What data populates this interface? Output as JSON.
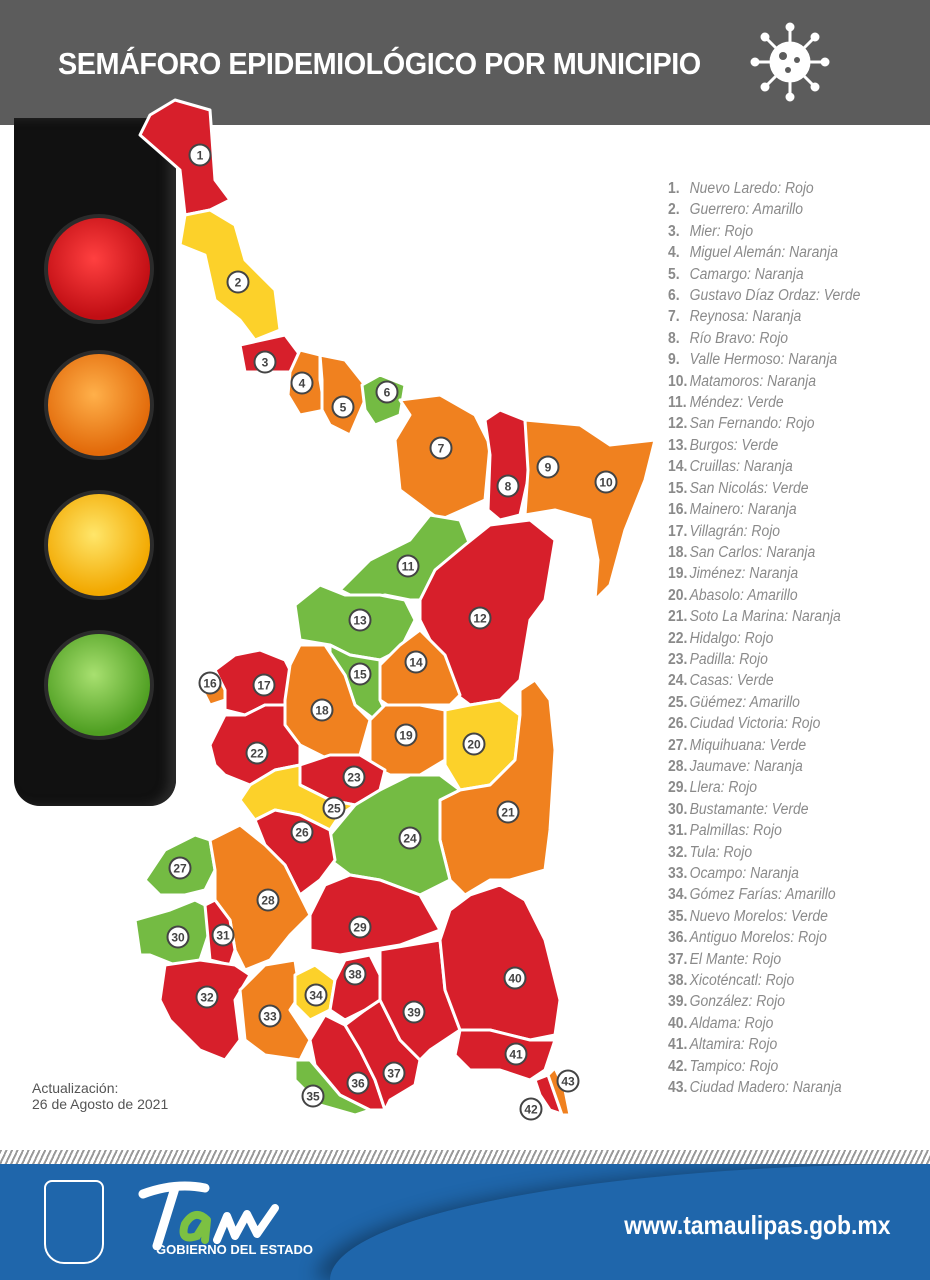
{
  "header": {
    "title": "SEMÁFORO EPIDEMIOLÓGICO POR MUNICIPIO",
    "icon": "virus-icon"
  },
  "status_colors": {
    "Rojo": "#d71f2b",
    "Amarillo": "#fcd12a",
    "Naranja": "#f0811f",
    "Verde": "#74bb43"
  },
  "municipalities": [
    {
      "num": "1",
      "name": "Nuevo Laredo",
      "status": "Rojo",
      "label": "Nuevo Laredo: Rojo"
    },
    {
      "num": "2",
      "name": "Guerrero",
      "status": "Amarillo",
      "label": "Guerrero: Amarillo"
    },
    {
      "num": "3",
      "name": "Mier",
      "status": "Rojo",
      "label": "Mier: Rojo"
    },
    {
      "num": "4",
      "name": "Miguel Alemán",
      "status": "Naranja",
      "label": "Miguel Alemán: Naranja"
    },
    {
      "num": "5",
      "name": "Camargo",
      "status": "Naranja",
      "label": "Camargo: Naranja"
    },
    {
      "num": "6",
      "name": "Gustavo Díaz Ordaz",
      "status": "Verde",
      "label": "Gustavo Díaz Ordaz: Verde"
    },
    {
      "num": "7",
      "name": "Reynosa",
      "status": "Naranja",
      "label": "Reynosa: Naranja"
    },
    {
      "num": "8",
      "name": "Río Bravo",
      "status": "Rojo",
      "label": "Río Bravo: Rojo"
    },
    {
      "num": "9",
      "name": "Valle Hermoso",
      "status": "Naranja",
      "label": "Valle Hermoso: Naranja"
    },
    {
      "num": "10",
      "name": "Matamoros",
      "status": "Naranja",
      "label": "Matamoros: Naranja"
    },
    {
      "num": "11",
      "name": "Méndez",
      "status": "Verde",
      "label": "Méndez: Verde"
    },
    {
      "num": "12",
      "name": "San Fernando",
      "status": "Rojo",
      "label": "San Fernando: Rojo"
    },
    {
      "num": "13",
      "name": "Burgos",
      "status": "Verde",
      "label": "Burgos: Verde"
    },
    {
      "num": "14",
      "name": "Cruillas",
      "status": "Naranja",
      "label": "Cruillas: Naranja"
    },
    {
      "num": "15",
      "name": "San Nicolás",
      "status": "Verde",
      "label": "San Nicolás: Verde"
    },
    {
      "num": "16",
      "name": "Mainero",
      "status": "Naranja",
      "label": "Mainero: Naranja"
    },
    {
      "num": "17",
      "name": "Villagrán",
      "status": "Rojo",
      "label": "Villagrán: Rojo"
    },
    {
      "num": "18",
      "name": "San Carlos",
      "status": "Naranja",
      "label": "San Carlos: Naranja"
    },
    {
      "num": "19",
      "name": "Jiménez",
      "status": "Naranja",
      "label": "Jiménez: Naranja"
    },
    {
      "num": "20",
      "name": "Abasolo",
      "status": "Amarillo",
      "label": "Abasolo: Amarillo"
    },
    {
      "num": "21",
      "name": "Soto La Marina",
      "status": "Naranja",
      "label": "Soto La Marina: Naranja"
    },
    {
      "num": "22",
      "name": "Hidalgo",
      "status": "Rojo",
      "label": "Hidalgo: Rojo"
    },
    {
      "num": "23",
      "name": "Padilla",
      "status": "Rojo",
      "label": "Padilla: Rojo"
    },
    {
      "num": "24",
      "name": "Casas",
      "status": "Verde",
      "label": "Casas: Verde"
    },
    {
      "num": "25",
      "name": "Güémez",
      "status": "Amarillo",
      "label": "Güémez: Amarillo"
    },
    {
      "num": "26",
      "name": "Ciudad Victoria",
      "status": "Rojo",
      "label": "Ciudad Victoria: Rojo"
    },
    {
      "num": "27",
      "name": "Miquihuana",
      "status": "Verde",
      "label": "Miquihuana: Verde"
    },
    {
      "num": "28",
      "name": "Jaumave",
      "status": "Naranja",
      "label": "Jaumave: Naranja"
    },
    {
      "num": "29",
      "name": "Llera",
      "status": "Rojo",
      "label": "Llera: Rojo"
    },
    {
      "num": "30",
      "name": "Bustamante",
      "status": "Verde",
      "label": "Bustamante: Verde"
    },
    {
      "num": "31",
      "name": "Palmillas",
      "status": "Rojo",
      "label": "Palmillas: Rojo"
    },
    {
      "num": "32",
      "name": "Tula",
      "status": "Rojo",
      "label": "Tula: Rojo"
    },
    {
      "num": "33",
      "name": "Ocampo",
      "status": "Naranja",
      "label": "Ocampo: Naranja"
    },
    {
      "num": "34",
      "name": "Gómez Farías",
      "status": "Amarillo",
      "label": "Gómez Farías: Amarillo"
    },
    {
      "num": "35",
      "name": "Nuevo Morelos",
      "status": "Verde",
      "label": "Nuevo Morelos: Verde"
    },
    {
      "num": "36",
      "name": "Antiguo Morelos",
      "status": "Rojo",
      "label": "Antiguo Morelos: Rojo"
    },
    {
      "num": "37",
      "name": "El Mante",
      "status": "Rojo",
      "label": "El Mante: Rojo"
    },
    {
      "num": "38",
      "name": "Xicoténcatl",
      "status": "Rojo",
      "label": "Xicoténcatl: Rojo"
    },
    {
      "num": "39",
      "name": "González",
      "status": "Rojo",
      "label": "González: Rojo"
    },
    {
      "num": "40",
      "name": "Aldama",
      "status": "Rojo",
      "label": "Aldama: Rojo"
    },
    {
      "num": "41",
      "name": "Altamira",
      "status": "Rojo",
      "label": "Altamira: Rojo"
    },
    {
      "num": "42",
      "name": "Tampico",
      "status": "Rojo",
      "label": "Tampico: Rojo"
    },
    {
      "num": "43",
      "name": "Ciudad Madero",
      "status": "Naranja",
      "label": "Ciudad Madero: Naranja"
    }
  ],
  "update": {
    "label": "Actualización:",
    "date": "26 de Agosto de 2021"
  },
  "footer": {
    "logo_text": "Tam",
    "government": "GOBIERNO DEL ESTADO",
    "url": "www.tamaulipas.gob.mx",
    "emblem": "coat-of-arms-icon"
  }
}
